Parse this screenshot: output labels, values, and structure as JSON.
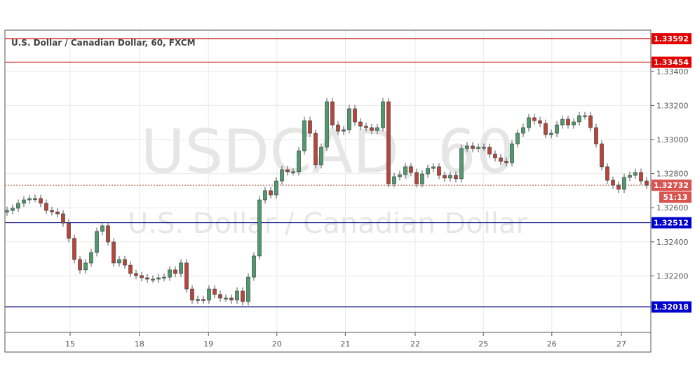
{
  "chart_data": {
    "type": "candlestick",
    "title": "U.S. Dollar / Canadian Dollar, 60, FXCM",
    "watermark": {
      "symbol": "USDCAD, 60",
      "name": "U.S. Dollar / Canadian Dollar"
    },
    "ylim": [
      1.3185,
      1.3363
    ],
    "y_ticks": [
      "1.33400",
      "1.33200",
      "1.33000",
      "1.32800",
      "1.32600",
      "1.32400",
      "1.32200"
    ],
    "x_ticks": [
      "15",
      "18",
      "19",
      "20",
      "21",
      "22",
      "25",
      "26",
      "27"
    ],
    "grid": true,
    "colors": {
      "up": "#4e9a6e",
      "down": "#b9443a",
      "resistance": "#e00000",
      "support": "#0000cc",
      "current": "#d9534f"
    },
    "horizontal_lines": [
      {
        "value": 1.33592,
        "label": "1.33592",
        "kind": "resistance"
      },
      {
        "value": 1.33454,
        "label": "1.33454",
        "kind": "resistance"
      },
      {
        "value": 1.32512,
        "label": "1.32512",
        "kind": "support"
      },
      {
        "value": 1.32018,
        "label": "1.32018",
        "kind": "support"
      }
    ],
    "current_price": {
      "value": 1.32732,
      "label": "1.32732",
      "countdown": "51:13"
    },
    "closes": [
      1.32584,
      1.32597,
      1.32626,
      1.32646,
      1.32654,
      1.32654,
      1.32626,
      1.32584,
      1.32576,
      1.32564,
      1.3251,
      1.3242,
      1.32296,
      1.32235,
      1.32276,
      1.32337,
      1.32461,
      1.32494,
      1.32399,
      1.32276,
      1.32296,
      1.32263,
      1.32214,
      1.32202,
      1.32189,
      1.32181,
      1.32181,
      1.32189,
      1.32193,
      1.32235,
      1.32214,
      1.32276,
      1.32123,
      1.32058,
      1.32062,
      1.32058,
      1.32123,
      1.32091,
      1.3207,
      1.3207,
      1.32058,
      1.32111,
      1.32049,
      1.32193,
      1.32317,
      1.32646,
      1.327,
      1.32675,
      1.32757,
      1.32823,
      1.32811,
      1.32811,
      1.32934,
      1.33111,
      1.33037,
      1.32852,
      1.32955,
      1.33222,
      1.33086,
      1.33049,
      1.33058,
      1.33181,
      1.33103,
      1.33078,
      1.3307,
      1.33053,
      1.3307,
      1.33222,
      1.32741,
      1.32782,
      1.32794,
      1.3284,
      1.32807,
      1.32741,
      1.32798,
      1.32831,
      1.3284,
      1.3279,
      1.32774,
      1.3279,
      1.3277,
      1.32947,
      1.32963,
      1.32947,
      1.32955,
      1.32955,
      1.32914,
      1.32893,
      1.32872,
      1.32864,
      1.32975,
      1.33037,
      1.3307,
      1.33128,
      1.33111,
      1.33095,
      1.33029,
      1.33037,
      1.33086,
      1.33119,
      1.33086,
      1.33103,
      1.3314,
      1.3314,
      1.3307,
      1.32975,
      1.3284,
      1.32761,
      1.32733,
      1.32708,
      1.32778,
      1.3279,
      1.32807,
      1.32757,
      1.32732
    ]
  }
}
